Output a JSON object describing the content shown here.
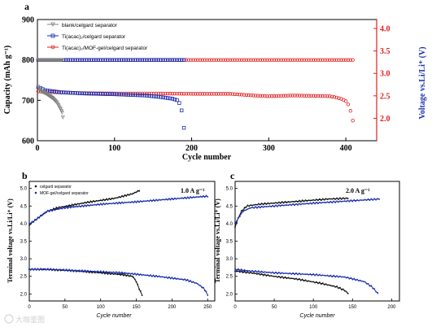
{
  "chart_data": [
    {
      "panel": "a",
      "type": "scatter",
      "xlabel": "Cycle number",
      "ylabel": "Capacity (mAh g⁻¹)",
      "y2label": "Voltage vs.Li/Li⁺ (V)",
      "xlim": [
        0,
        440
      ],
      "ylim": [
        600,
        900
      ],
      "y2lim": [
        1.5,
        4.2
      ],
      "xticks": [
        0,
        100,
        200,
        300,
        400
      ],
      "yticks": [
        600,
        700,
        800,
        900
      ],
      "y2ticks": [
        2.0,
        2.5,
        3.0,
        3.5,
        4.0
      ],
      "legend_position": "top-left",
      "colors": {
        "axis_right": "#e02020",
        "blank": "#808080",
        "tacac": "#1a2fb0",
        "mof": "#e02020"
      },
      "series": [
        {
          "name": "blank/celgard separator",
          "color": "#808080",
          "marker": "triangle-down",
          "charge_end": 32,
          "charge_value": 800,
          "discharge": [
            [
              1,
              733
            ],
            [
              5,
              722
            ],
            [
              10,
              718
            ],
            [
              15,
              712
            ],
            [
              20,
              705
            ],
            [
              25,
              695
            ],
            [
              28,
              685
            ],
            [
              30,
              678
            ],
            [
              32,
              670
            ],
            [
              33,
              658
            ]
          ]
        },
        {
          "name": "Ti(acac)₂/celgard separator",
          "color": "#1a2fb0",
          "marker": "square",
          "charge_end": 190,
          "charge_value": 800,
          "discharge": [
            [
              1,
              733
            ],
            [
              10,
              725
            ],
            [
              30,
              720
            ],
            [
              60,
              717
            ],
            [
              100,
              715
            ],
            [
              140,
              712
            ],
            [
              160,
              708
            ],
            [
              175,
              704
            ],
            [
              182,
              700
            ],
            [
              185,
              690
            ],
            [
              187,
              675
            ],
            [
              188,
              660
            ],
            [
              189,
              645
            ],
            [
              190,
              632
            ]
          ]
        },
        {
          "name": "Ti(acac)₂/MOF-gel/celgard separator",
          "color": "#e02020",
          "marker": "circle",
          "charge_end": 410,
          "charge_value": 800,
          "discharge": [
            [
              1,
              722
            ],
            [
              20,
              720
            ],
            [
              50,
              718
            ],
            [
              100,
              717
            ],
            [
              150,
              717
            ],
            [
              200,
              716
            ],
            [
              250,
              716
            ],
            [
              280,
              712
            ],
            [
              300,
              710
            ],
            [
              330,
              712
            ],
            [
              360,
              711
            ],
            [
              380,
              710
            ],
            [
              390,
              706
            ],
            [
              395,
              703
            ],
            [
              400,
              698
            ],
            [
              403,
              690
            ],
            [
              405,
              680
            ],
            [
              407,
              668
            ],
            [
              409,
              650
            ],
            [
              410,
              634
            ]
          ]
        }
      ]
    },
    {
      "panel": "b",
      "type": "scatter",
      "annotation": "1.0 A g⁻¹",
      "xlabel": "Cycle number",
      "ylabel": "Terminal voltage vs.Li/Li⁺ (V)",
      "xlim": [
        0,
        260
      ],
      "ylim": [
        1.8,
        5.2
      ],
      "xticks": [
        0,
        50,
        100,
        150,
        200,
        250
      ],
      "yticks": [
        2.0,
        2.5,
        3.0,
        3.5,
        4.0,
        4.5,
        5.0
      ],
      "legend_position": "top-left",
      "series": [
        {
          "name": "celgard separator",
          "color": "#111111",
          "charge": [
            [
              0,
              3.95
            ],
            [
              5,
              4.05
            ],
            [
              15,
              4.2
            ],
            [
              25,
              4.35
            ],
            [
              40,
              4.45
            ],
            [
              80,
              4.6
            ],
            [
              120,
              4.72
            ],
            [
              145,
              4.85
            ],
            [
              155,
              4.95
            ]
          ],
          "discharge": [
            [
              0,
              2.7
            ],
            [
              20,
              2.7
            ],
            [
              60,
              2.66
            ],
            [
              100,
              2.6
            ],
            [
              130,
              2.55
            ],
            [
              145,
              2.5
            ],
            [
              150,
              2.35
            ],
            [
              155,
              2.1
            ],
            [
              158,
              1.98
            ]
          ]
        },
        {
          "name": "MOF-gel/celgard separator",
          "color": "#1a2fb0",
          "charge": [
            [
              0,
              4.0
            ],
            [
              5,
              4.05
            ],
            [
              15,
              4.2
            ],
            [
              25,
              4.35
            ],
            [
              50,
              4.45
            ],
            [
              100,
              4.55
            ],
            [
              150,
              4.62
            ],
            [
              200,
              4.7
            ],
            [
              250,
              4.78
            ]
          ],
          "discharge": [
            [
              0,
              2.7
            ],
            [
              30,
              2.7
            ],
            [
              80,
              2.65
            ],
            [
              130,
              2.6
            ],
            [
              180,
              2.5
            ],
            [
              220,
              2.4
            ],
            [
              235,
              2.3
            ],
            [
              245,
              2.15
            ],
            [
              250,
              1.98
            ]
          ]
        }
      ]
    },
    {
      "panel": "c",
      "type": "scatter",
      "annotation": "2.0 A g⁻¹",
      "xlabel": "Cycle number",
      "ylabel": "Terminal voltage vs.Li/Li⁺ (V)",
      "xlim": [
        0,
        210
      ],
      "ylim": [
        1.8,
        5.2
      ],
      "xticks": [
        0,
        50,
        100,
        150,
        200
      ],
      "yticks": [
        2.0,
        2.5,
        3.0,
        3.5,
        4.0,
        4.5,
        5.0
      ],
      "series": [
        {
          "name": "celgard separator",
          "color": "#111111",
          "charge": [
            [
              0,
              3.9
            ],
            [
              3,
              4.1
            ],
            [
              8,
              4.35
            ],
            [
              15,
              4.5
            ],
            [
              30,
              4.55
            ],
            [
              60,
              4.6
            ],
            [
              90,
              4.65
            ],
            [
              120,
              4.7
            ],
            [
              145,
              4.72
            ]
          ],
          "discharge": [
            [
              0,
              2.65
            ],
            [
              20,
              2.6
            ],
            [
              50,
              2.5
            ],
            [
              80,
              2.42
            ],
            [
              110,
              2.3
            ],
            [
              130,
              2.2
            ],
            [
              140,
              2.1
            ],
            [
              145,
              2.0
            ]
          ]
        },
        {
          "name": "MOF-gel/celgard separator",
          "color": "#1a2fb0",
          "charge": [
            [
              0,
              4.0
            ],
            [
              4,
              4.15
            ],
            [
              10,
              4.35
            ],
            [
              20,
              4.45
            ],
            [
              50,
              4.5
            ],
            [
              100,
              4.58
            ],
            [
              150,
              4.65
            ],
            [
              185,
              4.7
            ]
          ],
          "discharge": [
            [
              0,
              2.7
            ],
            [
              20,
              2.65
            ],
            [
              50,
              2.6
            ],
            [
              100,
              2.55
            ],
            [
              140,
              2.48
            ],
            [
              165,
              2.35
            ],
            [
              175,
              2.2
            ],
            [
              183,
              2.0
            ]
          ]
        }
      ]
    }
  ],
  "panel_labels": {
    "a": "a",
    "b": "b",
    "c": "c"
  },
  "watermark": "大咖鉴图"
}
